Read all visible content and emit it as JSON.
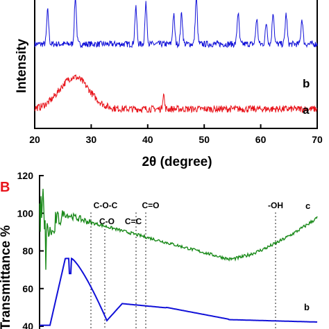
{
  "chart_data": [
    {
      "type": "line",
      "panel": "",
      "xlabel": "2θ (degree)",
      "ylabel": "Intensity",
      "xlim": [
        20,
        70
      ],
      "x_ticks": [
        20,
        30,
        40,
        50,
        60,
        70
      ],
      "grid": false,
      "series": [
        {
          "name": "b",
          "color": "#1010d8",
          "peaks_2theta": [
            22.3,
            27.2,
            37.9,
            39.7,
            44.6,
            46.0,
            48.6,
            56.0,
            59.3,
            61.0,
            62.2,
            64.5,
            67.3
          ]
        },
        {
          "name": "a",
          "color": "#e8131a",
          "broad_hump_2theta": 27.0,
          "peaks_2theta": [
            42.8
          ]
        }
      ]
    },
    {
      "type": "line",
      "panel": "B",
      "xlabel": "",
      "ylabel": "Transmittance %",
      "ylim": [
        40,
        120
      ],
      "y_ticks": [
        40,
        60,
        80,
        100,
        120
      ],
      "grid": false,
      "annotations": [
        {
          "label": "C-O-C"
        },
        {
          "label": "C-O"
        },
        {
          "label": "C=C"
        },
        {
          "label": "C=O"
        },
        {
          "label": "-OH"
        }
      ],
      "series": [
        {
          "name": "c",
          "color": "#1a8a1a"
        },
        {
          "name": "b",
          "color": "#1010d8"
        }
      ]
    }
  ]
}
